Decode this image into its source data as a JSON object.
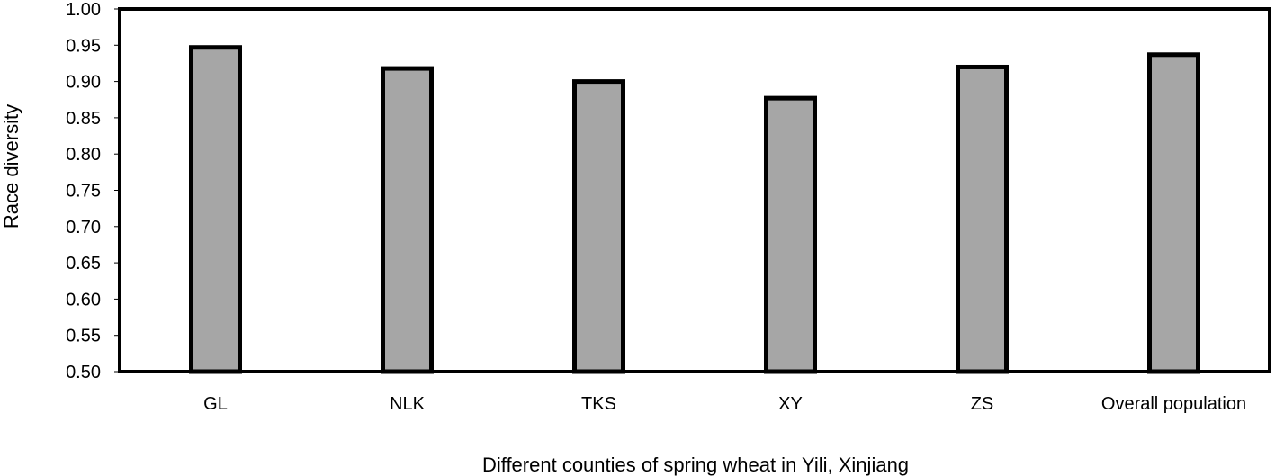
{
  "chart_data": {
    "type": "bar",
    "title": "",
    "xlabel": "Different counties of spring wheat in Yili, Xinjiang",
    "ylabel": "Race diversity",
    "categories": [
      "GL",
      "NLK",
      "TKS",
      "XY",
      "ZS",
      "Overall population"
    ],
    "values": [
      0.947,
      0.918,
      0.9,
      0.877,
      0.92,
      0.937
    ],
    "ylim": [
      0.5,
      1.0
    ],
    "yticks": [
      "0.50",
      "0.55",
      "0.60",
      "0.65",
      "0.70",
      "0.75",
      "0.80",
      "0.85",
      "0.90",
      "0.95",
      "1.00"
    ],
    "grid": false,
    "legend": "none",
    "colors": {
      "bar_fill": "#a6a6a6",
      "bar_edge": "#000000"
    }
  }
}
